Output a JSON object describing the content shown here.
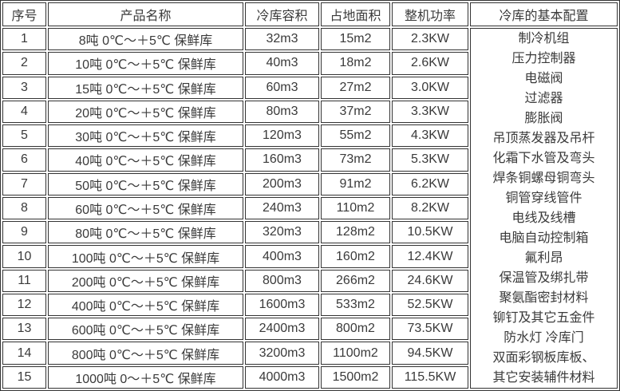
{
  "colors": {
    "border": "#333333",
    "text": "#3a3a3a",
    "background": "#ffffff"
  },
  "table": {
    "headers": [
      "序号",
      "产品名称",
      "冷库容积",
      "占地面积",
      "整机功率",
      "冷库的基本配置"
    ],
    "rows": [
      [
        "1",
        "8吨 0℃～＋5℃ 保鲜库",
        "32m3",
        "15m2",
        "2.3KW"
      ],
      [
        "2",
        "10吨 0℃～＋5℃ 保鲜库",
        "40m3",
        "18m2",
        "2.6KW"
      ],
      [
        "3",
        "15吨 0℃～＋5℃ 保鲜库",
        "60m3",
        "27m2",
        "3.0KW"
      ],
      [
        "4",
        "20吨 0℃～＋5℃ 保鲜库",
        "80m3",
        "37m2",
        "3.3KW"
      ],
      [
        "5",
        "30吨 0℃～＋5℃ 保鲜库",
        "120m3",
        "55m2",
        "4.3KW"
      ],
      [
        "6",
        "40吨 0℃～＋5℃ 保鲜库",
        "160m3",
        "73m2",
        "5.3KW"
      ],
      [
        "7",
        "50吨 0℃～＋5℃ 保鲜库",
        "200m3",
        "91m2",
        "6.2KW"
      ],
      [
        "8",
        "60吨 0℃～＋5℃ 保鲜库",
        "240m3",
        "110m2",
        "8.2KW"
      ],
      [
        "9",
        "80吨 0℃～＋5℃ 保鲜库",
        "320m3",
        "128m2",
        "10.5KW"
      ],
      [
        "10",
        "100吨 0℃～＋5℃ 保鲜库",
        "400m3",
        "160m2",
        "12.4KW"
      ],
      [
        "11",
        "200吨 0℃～＋5℃ 保鲜库",
        "800m3",
        "266m2",
        "24.6KW"
      ],
      [
        "12",
        "400吨 0℃～＋5℃ 保鲜库",
        "1600m3",
        "533m2",
        "52.5KW"
      ],
      [
        "13",
        "600吨 0℃～＋5℃ 保鲜库",
        "2400m3",
        "800m2",
        "73.5KW"
      ],
      [
        "14",
        "800吨 0℃～＋5℃ 保鲜库",
        "3200m3",
        "1100m2",
        "94.5KW"
      ],
      [
        "15",
        "1000吨 0～＋5℃ 保鲜库",
        "4000m3",
        "1500m2",
        "115.5KW"
      ]
    ],
    "config_items": [
      "制冷机组",
      "压力控制器",
      "电磁阀",
      "过滤器",
      "膨胀阀",
      "吊顶蒸发器及吊杆",
      "化霜下水管及弯头",
      "焊条铜螺母铜弯头",
      "铜管穿线管件",
      "电线及线槽",
      "电脑自动控制箱",
      "氟利昂",
      "保温管及绑扎带",
      "聚氨酯密封材料",
      "铆钉及其它五金件",
      "防水灯 冷库门",
      "双面彩钢板库板、",
      "其它安装辅件材料"
    ]
  }
}
